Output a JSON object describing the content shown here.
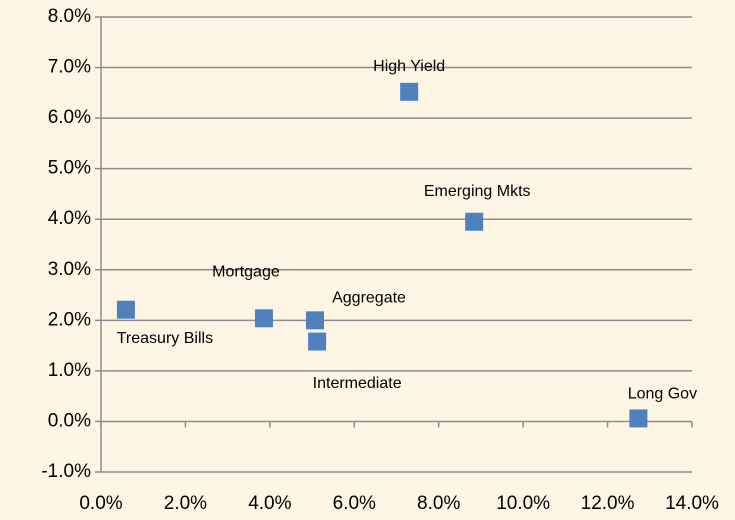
{
  "chart_data": {
    "type": "scatter",
    "labels": [
      "Treasury Bills",
      "Mortgage",
      "Aggregate",
      "Intermediate",
      "High Yield",
      "Emerging Mkts",
      "Long Gov"
    ],
    "x": [
      0.59,
      3.86,
      5.07,
      5.12,
      7.3,
      8.84,
      12.73
    ],
    "y": [
      2.21,
      2.04,
      2.0,
      1.58,
      6.52,
      3.95,
      0.06
    ],
    "color": "#4f81bd",
    "xlim": [
      0,
      14
    ],
    "xticks": [
      {
        "value": 0,
        "label": "0.0%"
      },
      {
        "value": 2,
        "label": "2.0%"
      },
      {
        "value": 4,
        "label": "4.0%"
      },
      {
        "value": 6,
        "label": "6.0%"
      },
      {
        "value": 8,
        "label": "8.0%"
      },
      {
        "value": 10,
        "label": "10.0%"
      },
      {
        "value": 12,
        "label": "12.0%"
      },
      {
        "value": 14,
        "label": "14.0%"
      }
    ],
    "ylim": [
      -1,
      8
    ],
    "yticks": [
      {
        "value": -1,
        "label": "-1.0%"
      },
      {
        "value": 0,
        "label": "0.0%"
      },
      {
        "value": 1,
        "label": "1.0%"
      },
      {
        "value": 2,
        "label": "2.0%"
      },
      {
        "value": 3,
        "label": "3.0%"
      },
      {
        "value": 4,
        "label": "4.0%"
      },
      {
        "value": 5,
        "label": "5.0%"
      },
      {
        "value": 6,
        "label": "6.0%"
      },
      {
        "value": 7,
        "label": "7.0%"
      },
      {
        "value": 8,
        "label": "8.0%"
      }
    ],
    "grid": true
  }
}
